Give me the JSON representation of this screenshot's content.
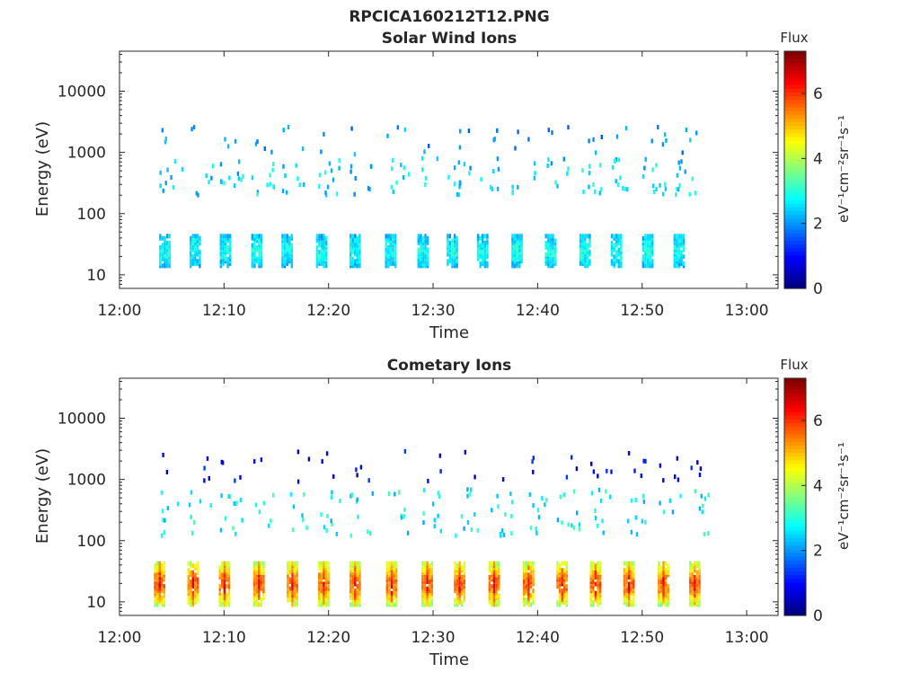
{
  "figure_title": "RPCICA160212T12.PNG",
  "chart_data": [
    {
      "type": "heatmap",
      "title": "Solar Wind Ions",
      "xlabel": "Time",
      "ylabel": "Energy (eV)",
      "x_ticks": [
        "12:00",
        "12:10",
        "12:20",
        "12:30",
        "12:40",
        "12:50",
        "13:00"
      ],
      "x_range_minutes": [
        0,
        63
      ],
      "y_scale": "log",
      "y_ticks": [
        "10",
        "100",
        "1000",
        "10000"
      ],
      "y_range": [
        6,
        45000
      ],
      "colorbar": {
        "title": "Flux",
        "unit": "eV⁻¹cm⁻²sr⁻¹s⁻¹",
        "ticks": [
          "0",
          "2",
          "4",
          "6"
        ],
        "range": [
          0,
          7.3
        ],
        "colormap": "jet"
      },
      "scan_start_minutes": [
        3.8,
        6.7,
        9.6,
        12.6,
        15.5,
        18.8,
        22.0,
        25.4,
        28.5,
        31.3,
        34.2,
        37.5,
        40.7,
        44.0,
        47.0,
        50.0,
        53.0
      ],
      "low_energy_band_eV": [
        14,
        45
      ],
      "low_energy_flux": 2.8,
      "mid_energy_band_eV": [
        200,
        800
      ],
      "mid_energy_flux": 2.5,
      "high_energy_band_eV": [
        900,
        2600
      ],
      "high_energy_flux": 2.0
    },
    {
      "type": "heatmap",
      "title": "Cometary Ions",
      "xlabel": "Time",
      "ylabel": "Energy (eV)",
      "x_ticks": [
        "12:00",
        "12:10",
        "12:20",
        "12:30",
        "12:40",
        "12:50",
        "13:00"
      ],
      "x_range_minutes": [
        0,
        63
      ],
      "y_scale": "log",
      "y_ticks": [
        "10",
        "100",
        "1000",
        "10000"
      ],
      "y_range": [
        6,
        45000
      ],
      "colorbar": {
        "title": "Flux",
        "unit": "eV⁻¹cm⁻²sr⁻¹s⁻¹",
        "ticks": [
          "0",
          "2",
          "4",
          "6"
        ],
        "range": [
          0,
          7.3
        ],
        "colormap": "jet"
      },
      "scan_start_minutes": [
        3.3,
        6.5,
        9.5,
        12.8,
        16.0,
        19.0,
        22.0,
        25.5,
        28.9,
        32.0,
        35.3,
        38.6,
        41.8,
        45.0,
        48.2,
        51.5,
        54.5
      ],
      "low_energy_band_eV": [
        9,
        45
      ],
      "low_energy_peak_flux": 5.6,
      "mid_energy_band_eV": [
        120,
        700
      ],
      "mid_energy_flux": 2.7,
      "high_energy_band_eV": [
        900,
        3000
      ],
      "high_energy_flux": 1.0
    }
  ]
}
